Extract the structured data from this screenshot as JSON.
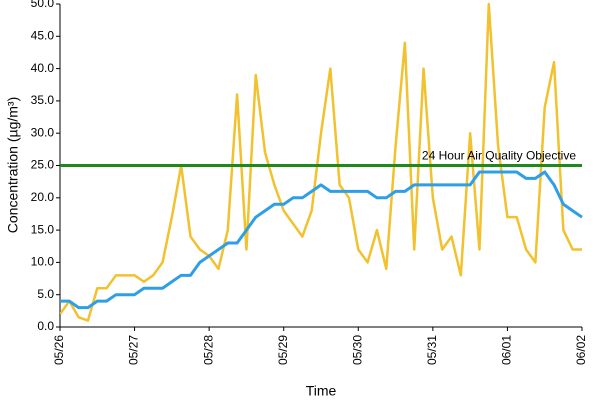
{
  "chart_data": {
    "type": "line",
    "x_label": "Time",
    "y_label": "Concentration (µg/m³)",
    "x": [
      0,
      3,
      6,
      9,
      12,
      15,
      18,
      21,
      24,
      27,
      30,
      33,
      36,
      39,
      42,
      45,
      48,
      51,
      54,
      57,
      60,
      63,
      66,
      69,
      72,
      75,
      78,
      81,
      84,
      87,
      90,
      93,
      96,
      99,
      102,
      105,
      108,
      111,
      114,
      117,
      120,
      123,
      126,
      129,
      132,
      135,
      138,
      141,
      144,
      147,
      150,
      153,
      156,
      159,
      162,
      165,
      168
    ],
    "xlim": [
      0,
      168
    ],
    "xticks": [
      {
        "value": 0,
        "label": "05/26"
      },
      {
        "value": 24,
        "label": "05/27"
      },
      {
        "value": 48,
        "label": "05/28"
      },
      {
        "value": 72,
        "label": "05/29"
      },
      {
        "value": 96,
        "label": "05/30"
      },
      {
        "value": 120,
        "label": "05/31"
      },
      {
        "value": 144,
        "label": "06/01"
      },
      {
        "value": 168,
        "label": "06/02"
      }
    ],
    "ylim": [
      0,
      50
    ],
    "yticks": [
      {
        "value": 0,
        "label": "0.0"
      },
      {
        "value": 5,
        "label": "5.0"
      },
      {
        "value": 10,
        "label": "10.0"
      },
      {
        "value": 15,
        "label": "15.0"
      },
      {
        "value": 20,
        "label": "20.0"
      },
      {
        "value": 25,
        "label": "25.0"
      },
      {
        "value": 30,
        "label": "30.0"
      },
      {
        "value": 35,
        "label": "35.0"
      },
      {
        "value": 40,
        "label": "40.0"
      },
      {
        "value": 45,
        "label": "45.0"
      },
      {
        "value": 50,
        "label": "50.0"
      }
    ],
    "series": [
      {
        "color": "#f2c12e",
        "values": [
          2,
          4,
          1.5,
          1,
          6,
          6,
          8,
          8,
          8,
          7,
          8,
          10,
          17,
          25,
          14,
          12,
          11,
          9,
          15,
          36,
          12,
          39,
          27,
          22,
          18,
          16,
          14,
          18,
          30,
          40,
          22,
          20,
          12,
          10,
          15,
          9,
          28,
          44,
          12,
          40,
          20,
          12,
          14,
          8,
          30,
          12,
          50,
          28,
          17,
          17,
          12,
          10,
          34,
          41,
          15,
          12,
          12
        ]
      },
      {
        "color": "#2e9fe6",
        "values": [
          4,
          4,
          3,
          3,
          4,
          4,
          5,
          5,
          5,
          6,
          6,
          6,
          7,
          8,
          8,
          10,
          11,
          12,
          13,
          13,
          15,
          17,
          18,
          19,
          19,
          20,
          20,
          21,
          22,
          21,
          21,
          21,
          21,
          21,
          20,
          20,
          21,
          21,
          22,
          22,
          22,
          22,
          22,
          22,
          22,
          24,
          24,
          24,
          24,
          24,
          23,
          23,
          24,
          22,
          19,
          18,
          17
        ]
      }
    ],
    "objective": {
      "value": 25,
      "label": "24 Hour Air Quality Objective",
      "color": "#1e8a1e"
    }
  }
}
